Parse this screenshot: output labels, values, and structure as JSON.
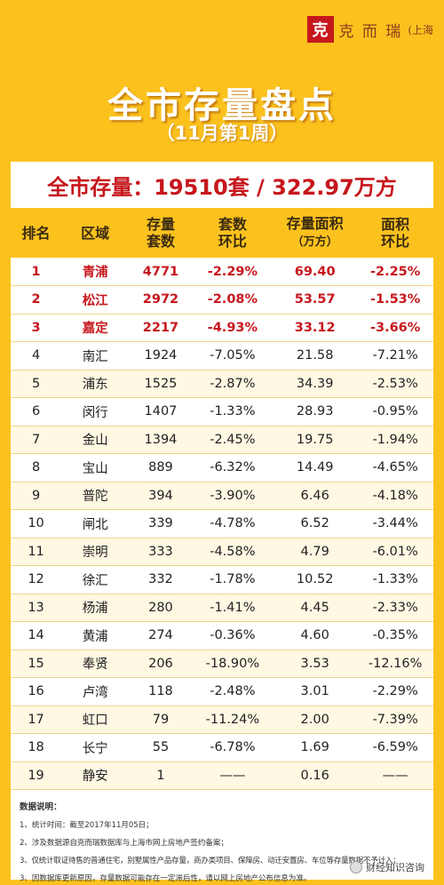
{
  "brand": {
    "seal": "克",
    "name": "克 而 瑞",
    "city": "(上海"
  },
  "title": "全市存量盘点",
  "subtitle": "（11月第1周）",
  "summary": "全市存量：19510套 / 322.97万方",
  "table": {
    "headers": [
      [
        "排名",
        ""
      ],
      [
        "区域",
        ""
      ],
      [
        "存量",
        "套数"
      ],
      [
        "套数",
        "环比"
      ],
      [
        "存量面积",
        "（万方）"
      ],
      [
        "面积",
        "环比"
      ]
    ],
    "rows": [
      [
        "1",
        "青浦",
        "4771",
        "-2.29%",
        "69.40",
        "-2.25%"
      ],
      [
        "2",
        "松江",
        "2972",
        "-2.08%",
        "53.57",
        "-1.53%"
      ],
      [
        "3",
        "嘉定",
        "2217",
        "-4.93%",
        "33.12",
        "-3.66%"
      ],
      [
        "4",
        "南汇",
        "1924",
        "-7.05%",
        "21.58",
        "-7.21%"
      ],
      [
        "5",
        "浦东",
        "1525",
        "-2.87%",
        "34.39",
        "-2.53%"
      ],
      [
        "6",
        "闵行",
        "1407",
        "-1.33%",
        "28.93",
        "-0.95%"
      ],
      [
        "7",
        "金山",
        "1394",
        "-2.45%",
        "19.75",
        "-1.94%"
      ],
      [
        "8",
        "宝山",
        "889",
        "-6.32%",
        "14.49",
        "-4.65%"
      ],
      [
        "9",
        "普陀",
        "394",
        "-3.90%",
        "6.46",
        "-4.18%"
      ],
      [
        "10",
        "闸北",
        "339",
        "-4.78%",
        "6.52",
        "-3.44%"
      ],
      [
        "11",
        "崇明",
        "333",
        "-4.58%",
        "4.79",
        "-6.01%"
      ],
      [
        "12",
        "徐汇",
        "332",
        "-1.78%",
        "10.52",
        "-1.33%"
      ],
      [
        "13",
        "杨浦",
        "280",
        "-1.41%",
        "4.45",
        "-2.33%"
      ],
      [
        "14",
        "黄浦",
        "274",
        "-0.36%",
        "4.60",
        "-0.35%"
      ],
      [
        "15",
        "奉贤",
        "206",
        "-18.90%",
        "3.53",
        "-12.16%"
      ],
      [
        "16",
        "卢湾",
        "118",
        "-2.48%",
        "3.01",
        "-2.29%"
      ],
      [
        "17",
        "虹口",
        "79",
        "-11.24%",
        "2.00",
        "-7.39%"
      ],
      [
        "18",
        "长宁",
        "55",
        "-6.78%",
        "1.69",
        "-6.59%"
      ],
      [
        "19",
        "静安",
        "1",
        "——",
        "0.16",
        "——"
      ]
    ]
  },
  "notes": {
    "title": "数据说明：",
    "lines": [
      "1、统计时间：截至2017年11月05日；",
      "2、涉及数据源自克而瑞数据库与上海市网上房地产签约备案；",
      "3、仅统计取证待售的普通住宅，别墅属性产品存量，商办类项目、保障房、动迁安置房、车位等存量数据不予计入；",
      "3、因数据库更新原因，存量数据可能存在一定滞后性，请以网上房地产公布信息为准。"
    ]
  },
  "watermark": "财经知识咨询"
}
